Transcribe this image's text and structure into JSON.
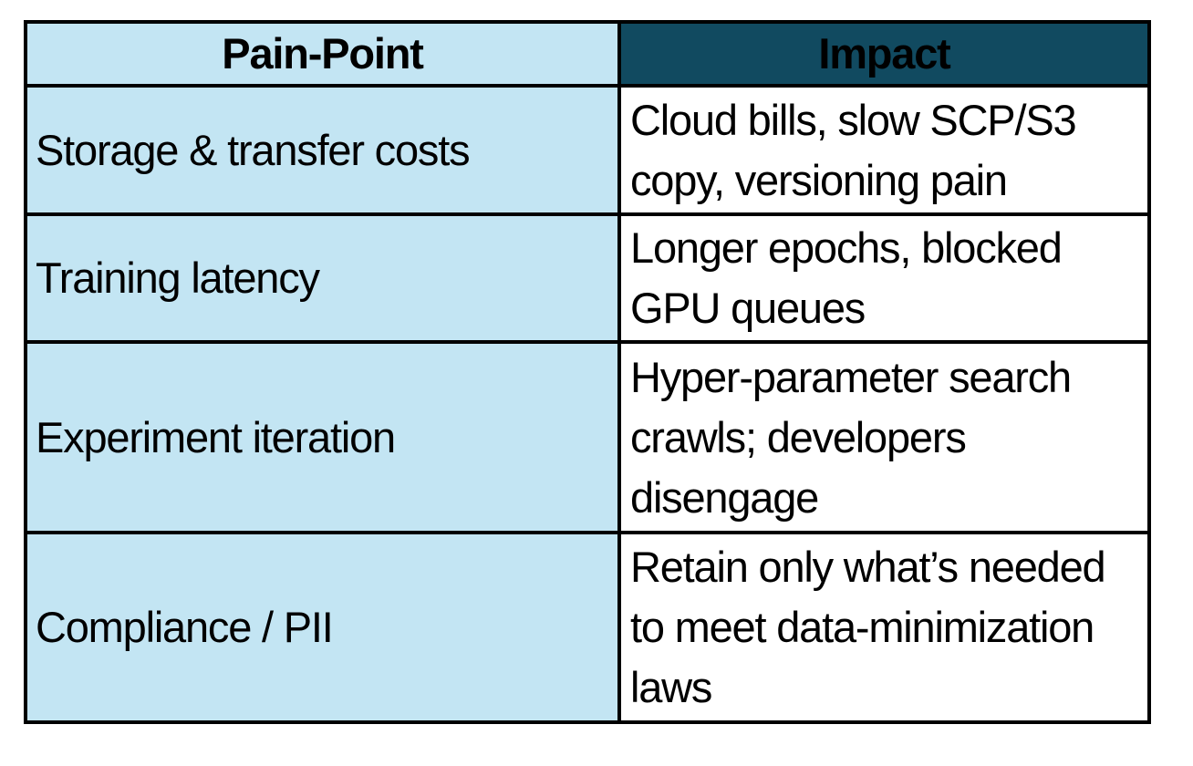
{
  "page": {
    "background_color": "#FFFFFF"
  },
  "table": {
    "colors": {
      "pain_column_bg": "#C3E5F3",
      "impact_header_bg": "#114A60",
      "border": "#000000",
      "text": "#000000"
    },
    "columns": [
      {
        "key": "pain_point",
        "label": "Pain-Point"
      },
      {
        "key": "impact",
        "label": "Impact"
      }
    ],
    "rows": [
      {
        "pain_point": "Storage & transfer costs",
        "impact": "Cloud bills, slow SCP/S3\ncopy, versioning pain"
      },
      {
        "pain_point": "Training latency",
        "impact": "Longer epochs, blocked\nGPU queues"
      },
      {
        "pain_point": "Experiment iteration",
        "impact": "Hyper-parameter search\ncrawls; developers\ndisengage"
      },
      {
        "pain_point": "Compliance / PII",
        "impact": "Retain only what’s needed\nto meet data-minimization\nlaws"
      }
    ]
  }
}
